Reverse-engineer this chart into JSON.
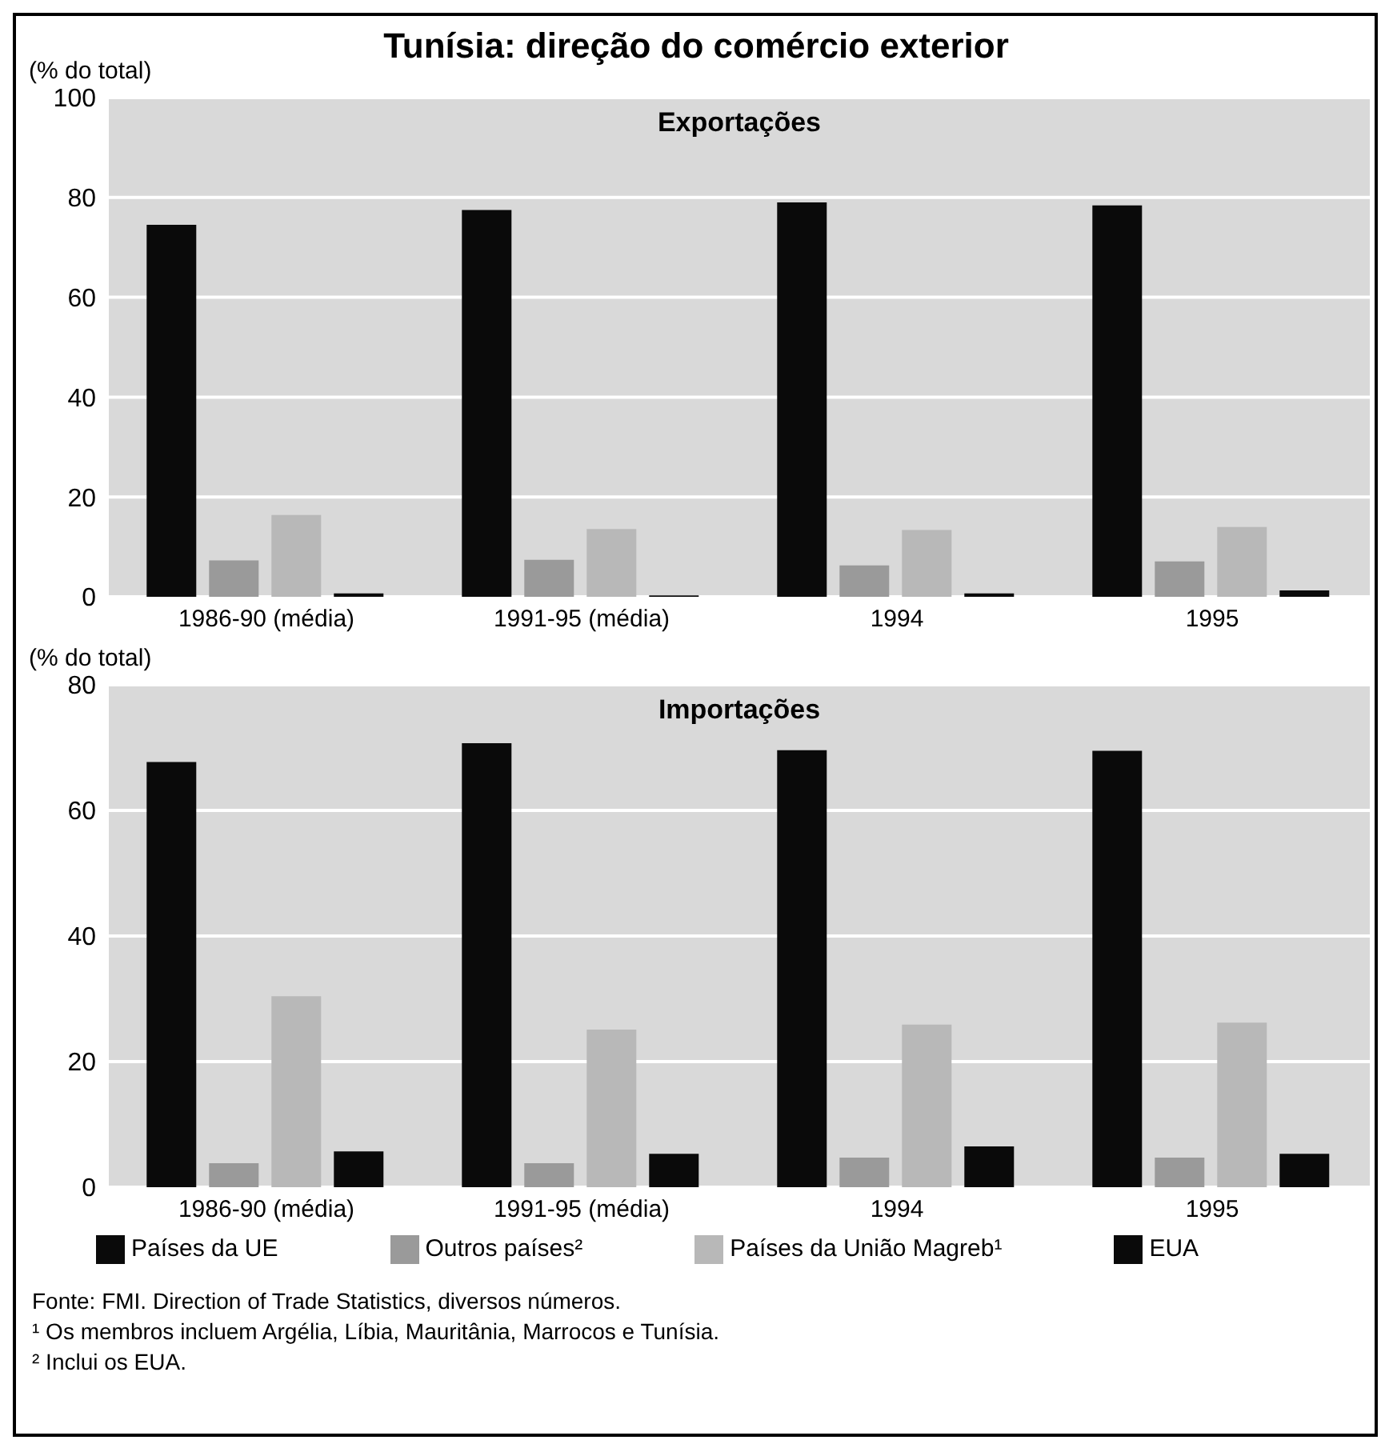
{
  "chart_data": [
    {
      "type": "bar",
      "title": "Tunísia: direção do comércio exterior",
      "subtitle": "Exportações",
      "ylabel": "(% do total)",
      "categories": [
        "1986-90 (média)",
        "1991-95 (média)",
        "1994",
        "1995"
      ],
      "series": [
        {
          "color": "#0a0a0a",
          "values": [
            74.5,
            77.5,
            79,
            78.4
          ]
        },
        {
          "color": "#9a9a9a",
          "values": [
            7.3,
            7.4,
            6.3,
            7.1
          ]
        },
        {
          "color": "#b8b8b8",
          "values": [
            16.4,
            13.6,
            13.4,
            14
          ]
        },
        {
          "color": "#0a0a0a",
          "values": [
            0.7,
            0.3,
            0.7,
            1.3
          ]
        }
      ],
      "ylim": [
        0,
        100
      ],
      "yticks": [
        0,
        20,
        40,
        60,
        80,
        100
      ],
      "grid": "y",
      "legend": false
    },
    {
      "type": "bar",
      "subtitle": "Importações",
      "ylabel": "(% do total)",
      "categories": [
        "1986-90 (média)",
        "1991-95 (média)",
        "1994",
        "1995"
      ],
      "series": [
        {
          "name": "Países da UE",
          "color": "#0a0a0a",
          "values": [
            67.7,
            70.7,
            69.6,
            69.5
          ]
        },
        {
          "name": "Outros países²",
          "color": "#9a9a9a",
          "values": [
            3.8,
            3.8,
            4.7,
            4.7
          ]
        },
        {
          "name": "Países da União Magreb¹",
          "color": "#b8b8b8",
          "values": [
            30.4,
            25.1,
            25.9,
            26.2
          ]
        },
        {
          "name": "EUA",
          "color": "#0a0a0a",
          "values": [
            5.7,
            5.3,
            6.5,
            5.3
          ]
        }
      ],
      "ylim": [
        0,
        80
      ],
      "yticks": [
        0,
        20,
        40,
        60,
        80
      ],
      "grid": "y",
      "legend": "bottom",
      "annotations": [
        "Fonte: FMI. Direction of Trade Statistics, diversos números.",
        "¹ Os membros incluem Argélia, Líbia, Mauritânia, Marrocos e Tunísia.",
        "² Inclui os EUA."
      ]
    }
  ]
}
